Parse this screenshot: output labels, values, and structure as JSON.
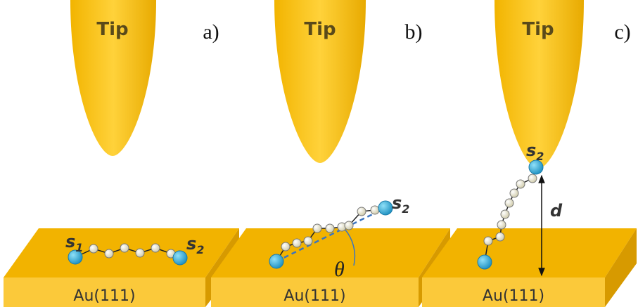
{
  "panels": [
    {
      "label": "a)",
      "tip": "Tip",
      "substrate": "Au(111)",
      "annotations": [
        {
          "letter": "s",
          "sub": "1"
        },
        {
          "letter": "s",
          "sub": "2"
        }
      ]
    },
    {
      "label": "b)",
      "tip": "Tip",
      "substrate": "Au(111)",
      "annotations": [
        {
          "letter": "s",
          "sub": "2"
        }
      ],
      "angle": "θ"
    },
    {
      "label": "c)",
      "tip": "Tip",
      "substrate": "Au(111)",
      "annotations": [
        {
          "letter": "s",
          "sub": "2"
        }
      ],
      "distance": "d"
    }
  ]
}
